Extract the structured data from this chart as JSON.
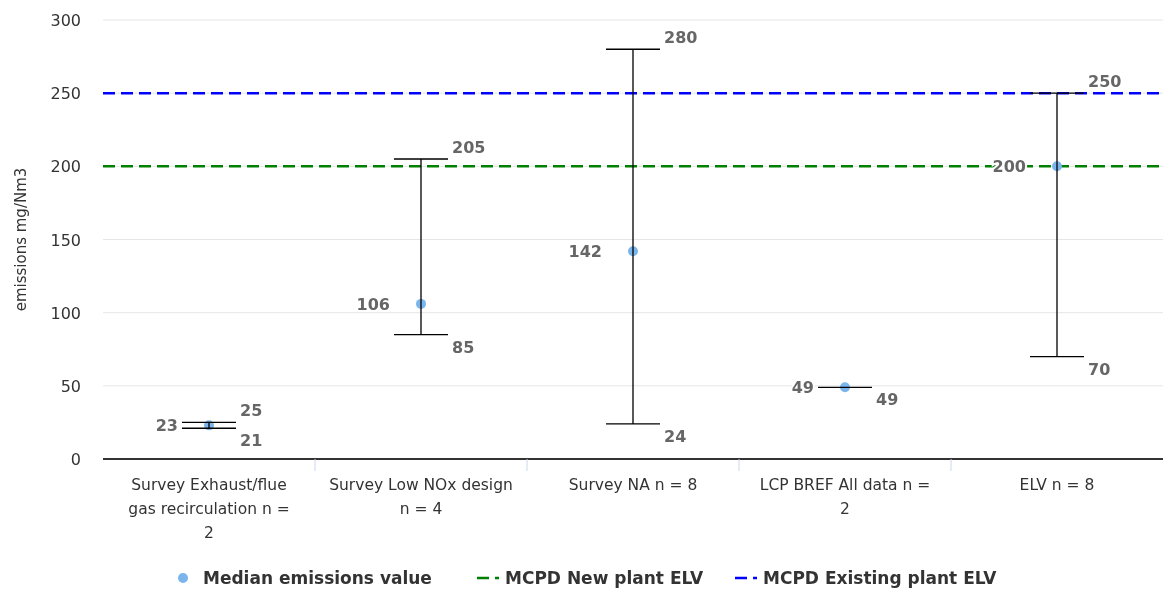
{
  "chart_data": {
    "type": "scatter",
    "ylabel": "emissions mg/Nm3",
    "categories": [
      "Survey Exhaust/flue gas recirculation n = 2",
      "Survey Low NOx design n = 4",
      "Survey NA n = 8",
      "LCP BREF All data n = 2",
      "ELV n = 8"
    ],
    "series": [
      {
        "name": "Median emissions value",
        "color": "#7cb5ec",
        "values": [
          23,
          106,
          142,
          49,
          200
        ],
        "errors": [
          [
            21,
            25
          ],
          [
            85,
            205
          ],
          [
            24,
            280
          ],
          [
            49,
            49
          ],
          [
            70,
            250
          ]
        ]
      }
    ],
    "ref_lines": [
      {
        "axis": "y",
        "value": 200,
        "label": "MCPD New plant ELV",
        "color": "#008000",
        "line_style": "dashed"
      },
      {
        "axis": "y",
        "value": 250,
        "label": "MCPD Existing plant ELV",
        "color": "#0000ff",
        "line_style": "dashed"
      }
    ],
    "annotations": [
      {
        "text": "25",
        "x": "Survey Exhaust/flue gas recirculation n = 2",
        "y": 25
      },
      {
        "text": "21",
        "x": "Survey Exhaust/flue gas recirculation n = 2",
        "y": 21
      },
      {
        "text": "205",
        "x": "Survey Low NOx design n = 4",
        "y": 205
      },
      {
        "text": "85",
        "x": "Survey Low NOx design n = 4",
        "y": 85
      },
      {
        "text": "280",
        "x": "Survey NA n = 8",
        "y": 280
      },
      {
        "text": "24",
        "x": "Survey NA n = 8",
        "y": 24
      },
      {
        "text": "49",
        "x": "LCP BREF All data n = 2",
        "y": 49
      },
      {
        "text": "250",
        "x": "ELV n = 8",
        "y": 250
      },
      {
        "text": "70",
        "x": "ELV n = 8",
        "y": 70
      }
    ],
    "ylim": [
      0,
      300
    ],
    "yticks": [
      0,
      50,
      100,
      150,
      200,
      250,
      300
    ],
    "grid": "y",
    "legend": "bottom",
    "marker": "circle",
    "data_labels": true
  }
}
